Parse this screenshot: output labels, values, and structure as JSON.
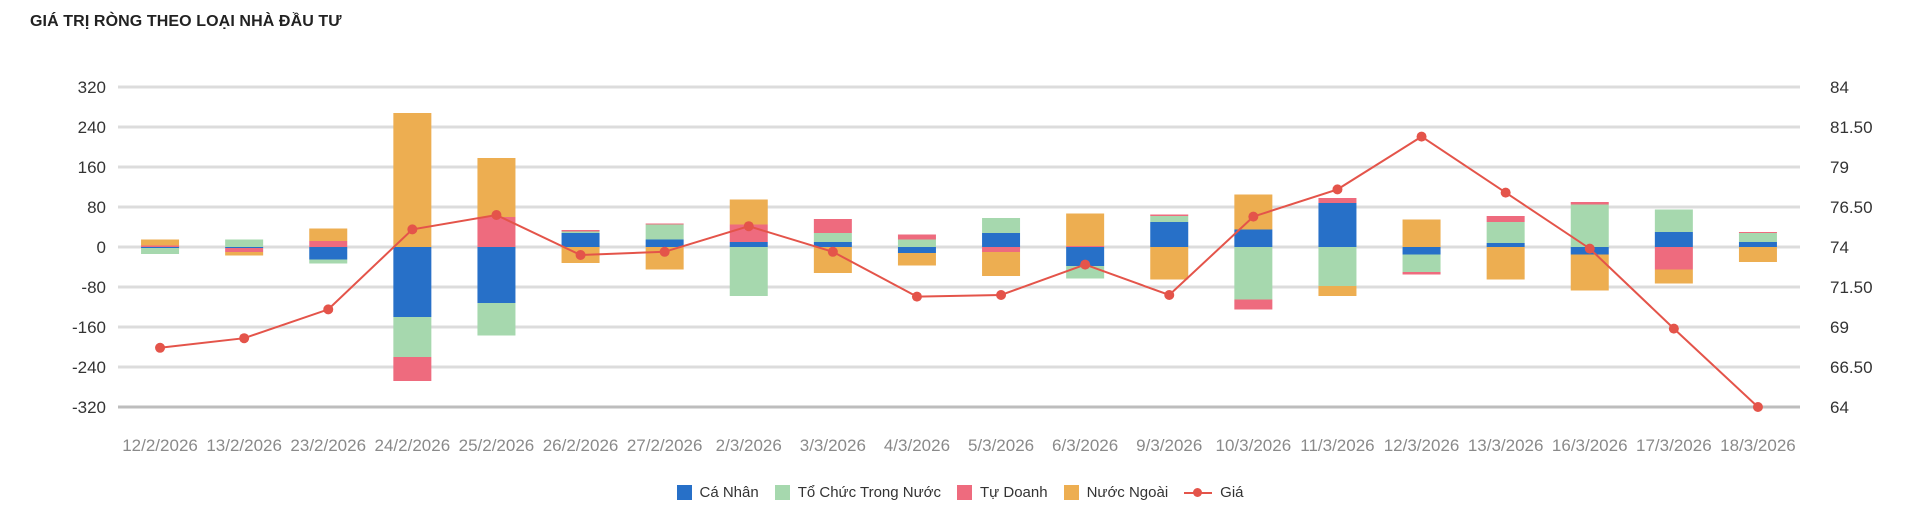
{
  "title": "GIÁ TRỊ RÒNG THEO LOẠI NHÀ ĐẦU TƯ",
  "legend": [
    "Cá Nhân",
    "Tổ Chức Trong Nước",
    "Tự Doanh",
    "Nước Ngoài",
    "Giá"
  ],
  "colors": {
    "ca_nhan": "#2770C8",
    "to_chuc": "#A6D8AE",
    "tu_doanh": "#EE6B7E",
    "nuoc_ngoai": "#EDAE51",
    "gia": "#E4544A"
  },
  "chart_data": {
    "type": "bar",
    "stacked": true,
    "title": "GIÁ TRỊ RÒNG THEO LOẠI NHÀ ĐẦU TƯ",
    "categories": [
      "12/2/2026",
      "13/2/2026",
      "23/2/2026",
      "24/2/2026",
      "25/2/2026",
      "26/2/2026",
      "27/2/2026",
      "2/3/2026",
      "3/3/2026",
      "4/3/2026",
      "5/3/2026",
      "6/3/2026",
      "9/3/2026",
      "10/3/2026",
      "11/3/2026",
      "12/3/2026",
      "13/3/2026",
      "16/3/2026",
      "17/3/2026",
      "18/3/2026"
    ],
    "y_left": {
      "ticks": [
        "320",
        "240",
        "160",
        "80",
        "0",
        "-80",
        "-160",
        "-240",
        "-320"
      ],
      "ylim": [
        -320,
        320
      ]
    },
    "y_right": {
      "ticks": [
        "84",
        "81.50",
        "79",
        "76.50",
        "74",
        "71.50",
        "69",
        "66.50",
        "64"
      ],
      "ylim": [
        64,
        84
      ]
    },
    "grid": true,
    "legend_position": "bottom",
    "series": [
      {
        "name": "Cá Nhân",
        "type": "bar",
        "axis": "left",
        "values": [
          -2,
          -2,
          -25,
          -140,
          -112,
          28,
          15,
          10,
          10,
          -12,
          28,
          -38,
          50,
          35,
          88,
          -15,
          8,
          -15,
          30,
          10
        ]
      },
      {
        "name": "Tổ Chức Trong Nước",
        "type": "bar",
        "axis": "left",
        "values": [
          -12,
          15,
          -8,
          -80,
          -65,
          3,
          30,
          -98,
          18,
          15,
          30,
          -25,
          12,
          -105,
          -78,
          -35,
          42,
          85,
          45,
          18
        ]
      },
      {
        "name": "Tự Doanh",
        "type": "bar",
        "axis": "left",
        "values": [
          3,
          -8,
          12,
          -48,
          60,
          3,
          2,
          35,
          28,
          10,
          -10,
          2,
          3,
          -20,
          10,
          -5,
          12,
          5,
          -45,
          2
        ]
      },
      {
        "name": "Nước Ngoài",
        "type": "bar",
        "axis": "left",
        "values": [
          12,
          -7,
          25,
          268,
          118,
          -32,
          -45,
          50,
          -52,
          -25,
          -48,
          65,
          -65,
          70,
          -20,
          55,
          -65,
          -72,
          -28,
          -30
        ]
      },
      {
        "name": "Giá",
        "type": "line",
        "axis": "right",
        "values": [
          67.7,
          68.3,
          70.1,
          75.1,
          76.0,
          73.5,
          73.7,
          75.3,
          73.7,
          70.9,
          71.0,
          72.9,
          71.0,
          75.9,
          77.6,
          80.9,
          77.4,
          73.9,
          68.9,
          64.0
        ]
      }
    ]
  }
}
